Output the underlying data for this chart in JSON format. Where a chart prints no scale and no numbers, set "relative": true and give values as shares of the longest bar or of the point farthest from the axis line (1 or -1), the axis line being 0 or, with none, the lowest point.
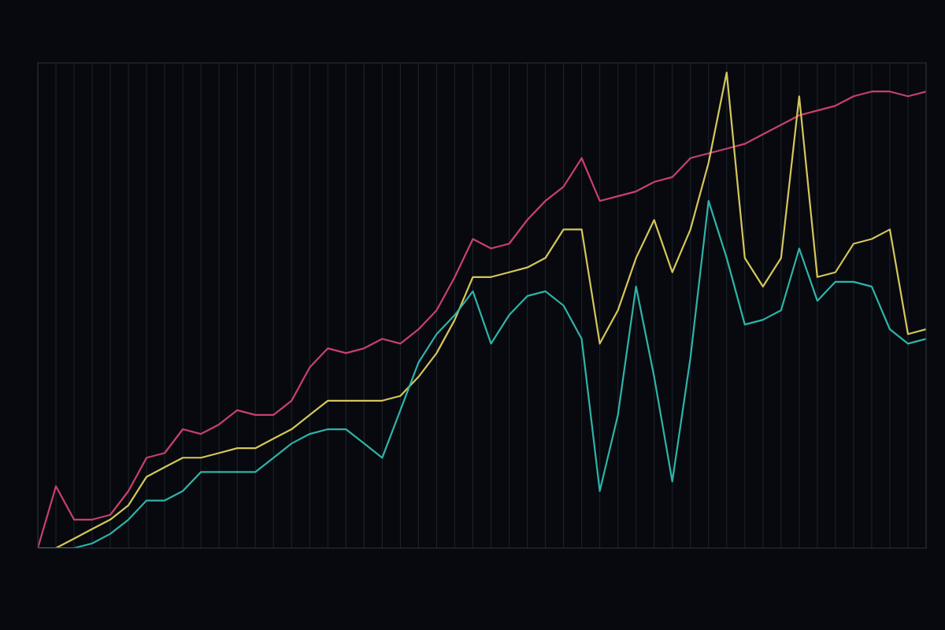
{
  "chart_data": {
    "type": "line",
    "relative": true,
    "grid": true,
    "marker": "none",
    "line_style": "solid",
    "categories": [
      null,
      null,
      null,
      null,
      null,
      null,
      null,
      null,
      null,
      null,
      null,
      null,
      null,
      null,
      null,
      null,
      null,
      null,
      null,
      null,
      null,
      null,
      null,
      null,
      null,
      null,
      null,
      null,
      null,
      null,
      null,
      null,
      null,
      null,
      null,
      null,
      null,
      null,
      null,
      null,
      null,
      null,
      null,
      null,
      null,
      null,
      null,
      null,
      null,
      null
    ],
    "series": [
      {
        "color": "#c8406e",
        "values": [
          0,
          0.13,
          0.06,
          0.06,
          0.07,
          0.12,
          0.19,
          0.2,
          0.25,
          0.24,
          0.26,
          0.29,
          0.28,
          0.28,
          0.31,
          0.38,
          0.42,
          0.41,
          0.42,
          0.44,
          0.43,
          0.46,
          0.5,
          0.57,
          0.65,
          0.63,
          0.64,
          0.69,
          0.73,
          0.76,
          0.82,
          0.73,
          0.74,
          0.75,
          0.77,
          0.78,
          0.82,
          0.83,
          0.84,
          0.85,
          0.87,
          0.89,
          0.91,
          0.92,
          0.93,
          0.95,
          0.96,
          0.96,
          0.95,
          0.96
        ]
      },
      {
        "color": "#d4c65a",
        "values": [
          0,
          0,
          0.02,
          0.04,
          0.06,
          0.09,
          0.15,
          0.17,
          0.19,
          0.19,
          0.2,
          0.21,
          0.21,
          0.23,
          0.25,
          0.28,
          0.31,
          0.31,
          0.31,
          0.31,
          0.32,
          0.36,
          0.41,
          0.48,
          0.57,
          0.57,
          0.58,
          0.59,
          0.61,
          0.67,
          0.67,
          0.43,
          0.5,
          0.61,
          0.69,
          0.58,
          0.67,
          0.81,
          1.0,
          0.61,
          0.55,
          0.61,
          0.95,
          0.57,
          0.58,
          0.64,
          0.65,
          0.67,
          0.45,
          0.46
        ]
      },
      {
        "color": "#2fb3a8",
        "values": [
          0,
          0,
          0,
          0.01,
          0.03,
          0.06,
          0.1,
          0.1,
          0.12,
          0.16,
          0.16,
          0.16,
          0.16,
          0.19,
          0.22,
          0.24,
          0.25,
          0.25,
          0.22,
          0.19,
          0.29,
          0.39,
          0.45,
          0.49,
          0.54,
          0.43,
          0.49,
          0.53,
          0.54,
          0.51,
          0.44,
          0.12,
          0.28,
          0.55,
          0.36,
          0.14,
          0.4,
          0.73,
          0.61,
          0.47,
          0.48,
          0.5,
          0.63,
          0.52,
          0.56,
          0.56,
          0.55,
          0.46,
          0.43,
          0.44
        ]
      }
    ]
  }
}
